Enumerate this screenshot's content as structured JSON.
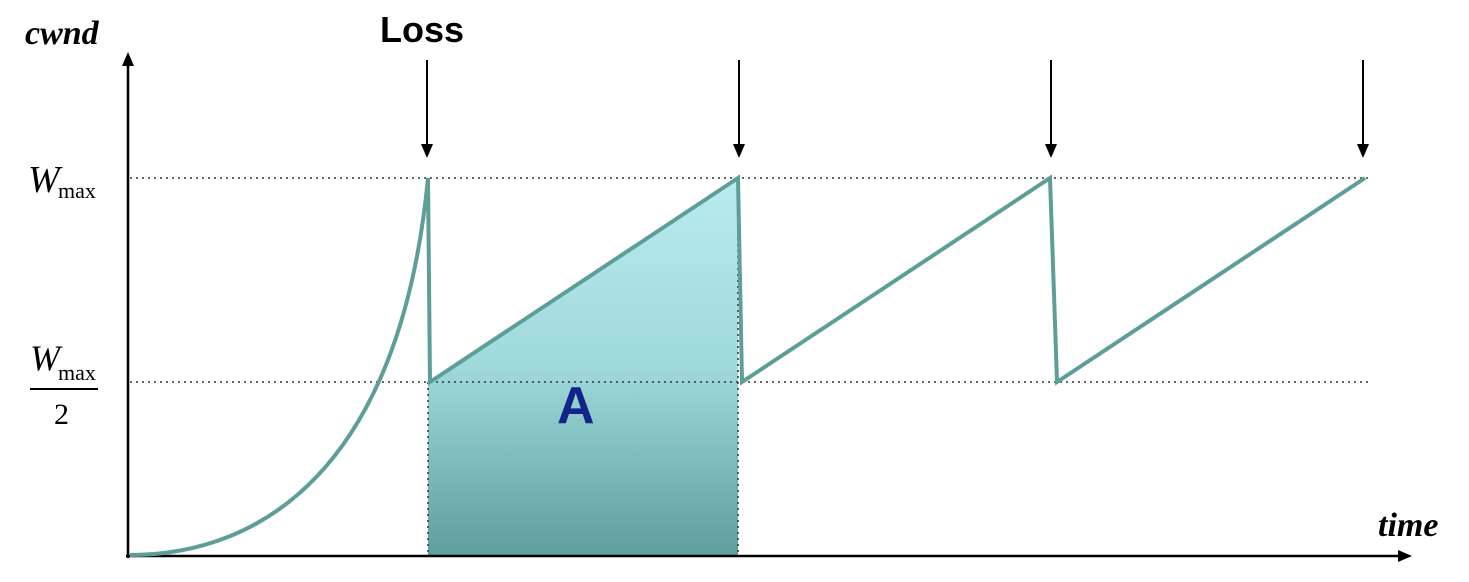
{
  "diagram": {
    "y_axis_label": "cwnd",
    "x_axis_label": "time",
    "loss_label": "Loss",
    "wmax_label": {
      "main": "W",
      "sub": "max"
    },
    "half_wmax_label": {
      "main": "W",
      "sub": "max",
      "denominator": "2"
    },
    "area_label": "A",
    "colors": {
      "curve": "#5e9e98",
      "fill_top": "#b8ecef",
      "fill_mid": "#9fd9dc",
      "fill_bottom": "#5e9e9e",
      "area_label": "#13238a",
      "axis": "#000000"
    }
  }
}
